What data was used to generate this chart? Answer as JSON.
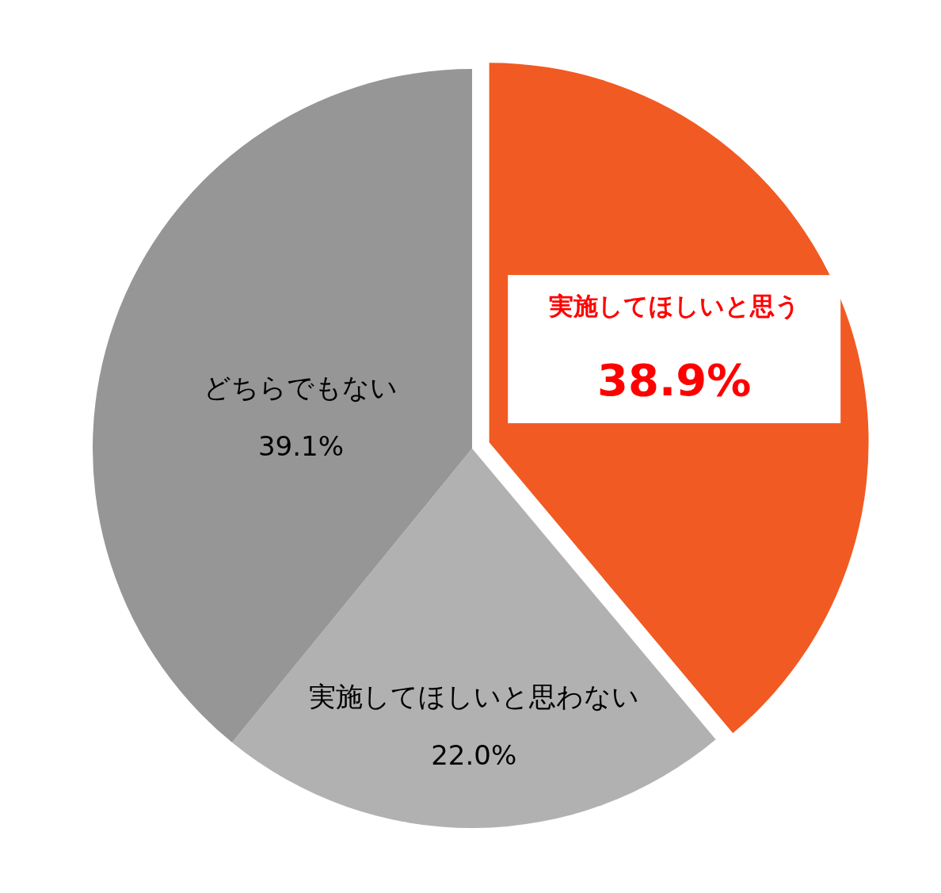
{
  "chart_data": {
    "type": "pie",
    "categories": [
      "実施してほしいと思う",
      "実施してほしいと思わない",
      "どちらでもない"
    ],
    "values": [
      38.9,
      22.0,
      39.1
    ],
    "colors": [
      "#f15a22",
      "#b1b1b1",
      "#969696"
    ],
    "value_labels": [
      "38.9%",
      "22.0%",
      "39.1%"
    ],
    "legend": false
  }
}
